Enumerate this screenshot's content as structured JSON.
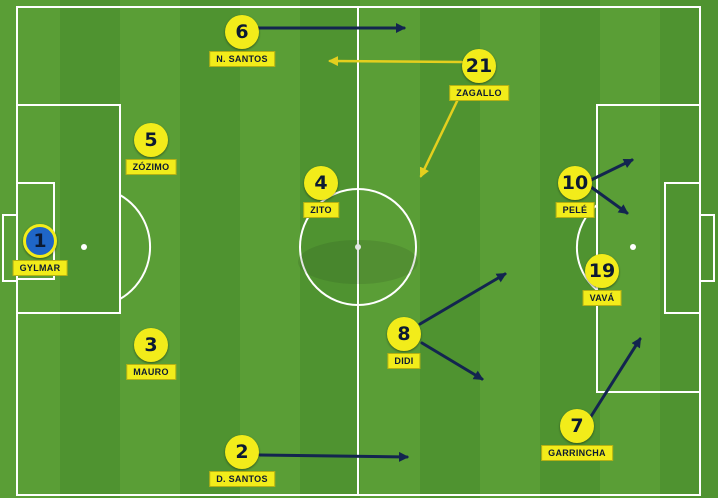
{
  "colors": {
    "team": "#f2ec1a",
    "goalkeeper": "#1f66c7",
    "arrow_run": "#13254f",
    "arrow_sub": "#e4cf1e"
  },
  "players": [
    {
      "id": "gk",
      "number": "1",
      "name": "GYLMAR"
    },
    {
      "id": "p5",
      "number": "5",
      "name": "ZÓZIMO"
    },
    {
      "id": "p3",
      "number": "3",
      "name": "MAURO"
    },
    {
      "id": "p6",
      "number": "6",
      "name": "N. SANTOS"
    },
    {
      "id": "p2",
      "number": "2",
      "name": "D. SANTOS"
    },
    {
      "id": "p4",
      "number": "4",
      "name": "ZITO"
    },
    {
      "id": "p21",
      "number": "21",
      "name": "ZAGALLO"
    },
    {
      "id": "p8",
      "number": "8",
      "name": "DIDI"
    },
    {
      "id": "p10",
      "number": "10",
      "name": "PELÉ"
    },
    {
      "id": "p19",
      "number": "19",
      "name": "VAVÁ"
    },
    {
      "id": "p7",
      "number": "7",
      "name": "GARRINCHA"
    }
  ]
}
